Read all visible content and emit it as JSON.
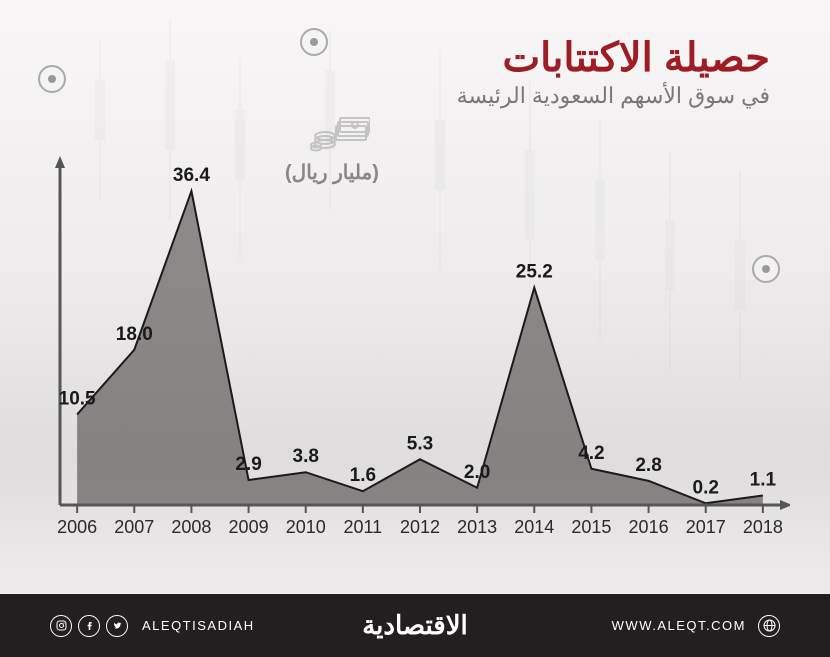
{
  "header": {
    "title": "حصيلة الاكتتابات",
    "subtitle": "في سوق الأسهم السعودية الرئيسة"
  },
  "unit_label": "(مليار ريال)",
  "chart": {
    "type": "area",
    "years": [
      "2006",
      "2007",
      "2008",
      "2009",
      "2010",
      "2011",
      "2012",
      "2013",
      "2014",
      "2015",
      "2016",
      "2017",
      "2018"
    ],
    "values": [
      10.5,
      18.0,
      36.4,
      2.9,
      3.8,
      1.6,
      5.3,
      2.0,
      25.2,
      4.2,
      2.8,
      0.2,
      1.1
    ],
    "y_max": 40,
    "fill_color": "rgba(60,55,52,0.55)",
    "line_color": "#1a1a1a",
    "line_width": 2,
    "axis_color": "#565656",
    "value_label_fontsize": 19,
    "year_label_fontsize": 18,
    "background_gradient": [
      "#f8f6f6",
      "#eeecec",
      "#dedcdc",
      "#f5f3f3"
    ]
  },
  "footer": {
    "brand": "الاقتصادية",
    "handle": "ALEQTISADIAH",
    "url": "WWW.ALEQT.COM"
  }
}
